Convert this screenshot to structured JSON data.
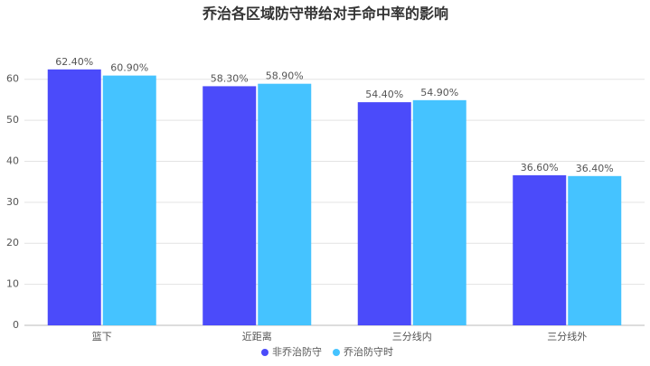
{
  "chart_data": {
    "type": "bar",
    "title": "乔治各区域防守带给对手命中率的影响",
    "categories": [
      "篮下",
      "近距离",
      "三分线内",
      "三分线外"
    ],
    "series": [
      {
        "name": "非乔治防守",
        "color": "#4b4bfa",
        "values": [
          62.4,
          58.3,
          54.4,
          36.6
        ],
        "value_labels": [
          "62.40%",
          "58.30%",
          "54.40%",
          "36.60%"
        ]
      },
      {
        "name": "乔治防守时",
        "color": "#45c3ff",
        "values": [
          60.9,
          58.9,
          54.9,
          36.4
        ],
        "value_labels": [
          "60.90%",
          "58.90%",
          "54.90%",
          "36.40%"
        ]
      }
    ],
    "ylim": [
      0,
      65
    ],
    "yticks": [
      0,
      10,
      20,
      30,
      40,
      50,
      60
    ],
    "grid": true,
    "legend": "bottom"
  }
}
